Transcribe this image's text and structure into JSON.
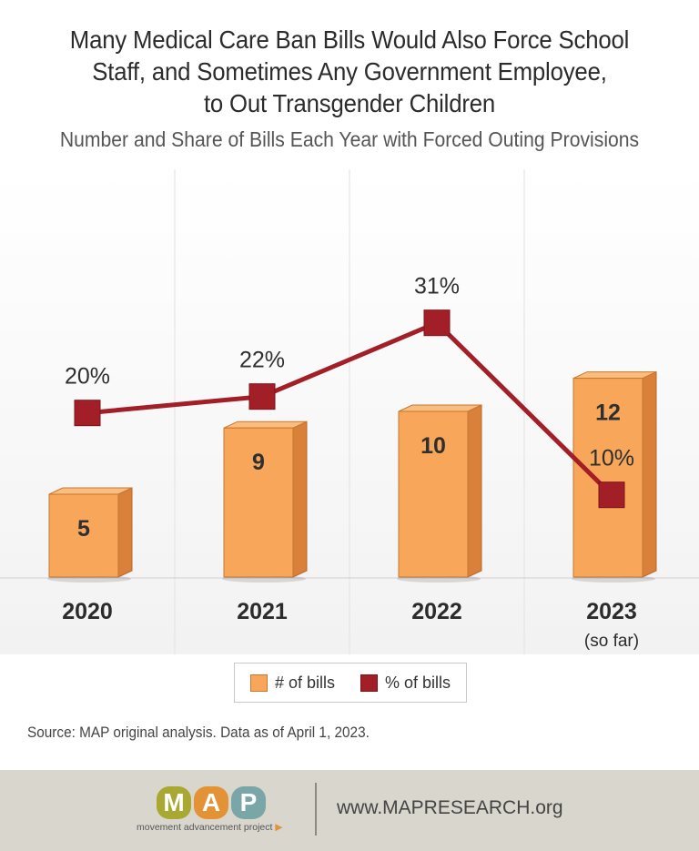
{
  "title_lines": [
    "Many Medical Care Ban Bills Would Also Force School",
    "Staff, and Sometimes Any Government Employee,",
    "to Out Transgender Children"
  ],
  "subtitle": "Number and Share of Bills Each Year with Forced Outing Provisions",
  "chart_data": {
    "type": "bar",
    "categories": [
      "2020",
      "2021",
      "2022",
      "2023"
    ],
    "category_sublabels": [
      "",
      "",
      "",
      "(so far)"
    ],
    "series": [
      {
        "name": "# of bills",
        "type": "bar",
        "values": [
          5,
          9,
          10,
          12
        ],
        "labels": [
          "5",
          "9",
          "10",
          "12"
        ],
        "color": "#f7a65a"
      },
      {
        "name": "% of bills",
        "type": "line",
        "values": [
          20,
          22,
          31,
          10
        ],
        "labels": [
          "20%",
          "22%",
          "31%",
          "10%"
        ],
        "color": "#a31f28"
      }
    ],
    "legend": "bottom-center",
    "grid": "vertical separators"
  },
  "legend": {
    "bars_label": "# of bills",
    "pct_label": "% of bills"
  },
  "source": "Source: MAP original analysis. Data as of April 1, 2023.",
  "footer": {
    "logo_letters": [
      "M",
      "A",
      "P"
    ],
    "logo_tagline": "movement advancement project",
    "logo_arrow": "▶",
    "url": "www.MAPRESEARCH.org"
  }
}
